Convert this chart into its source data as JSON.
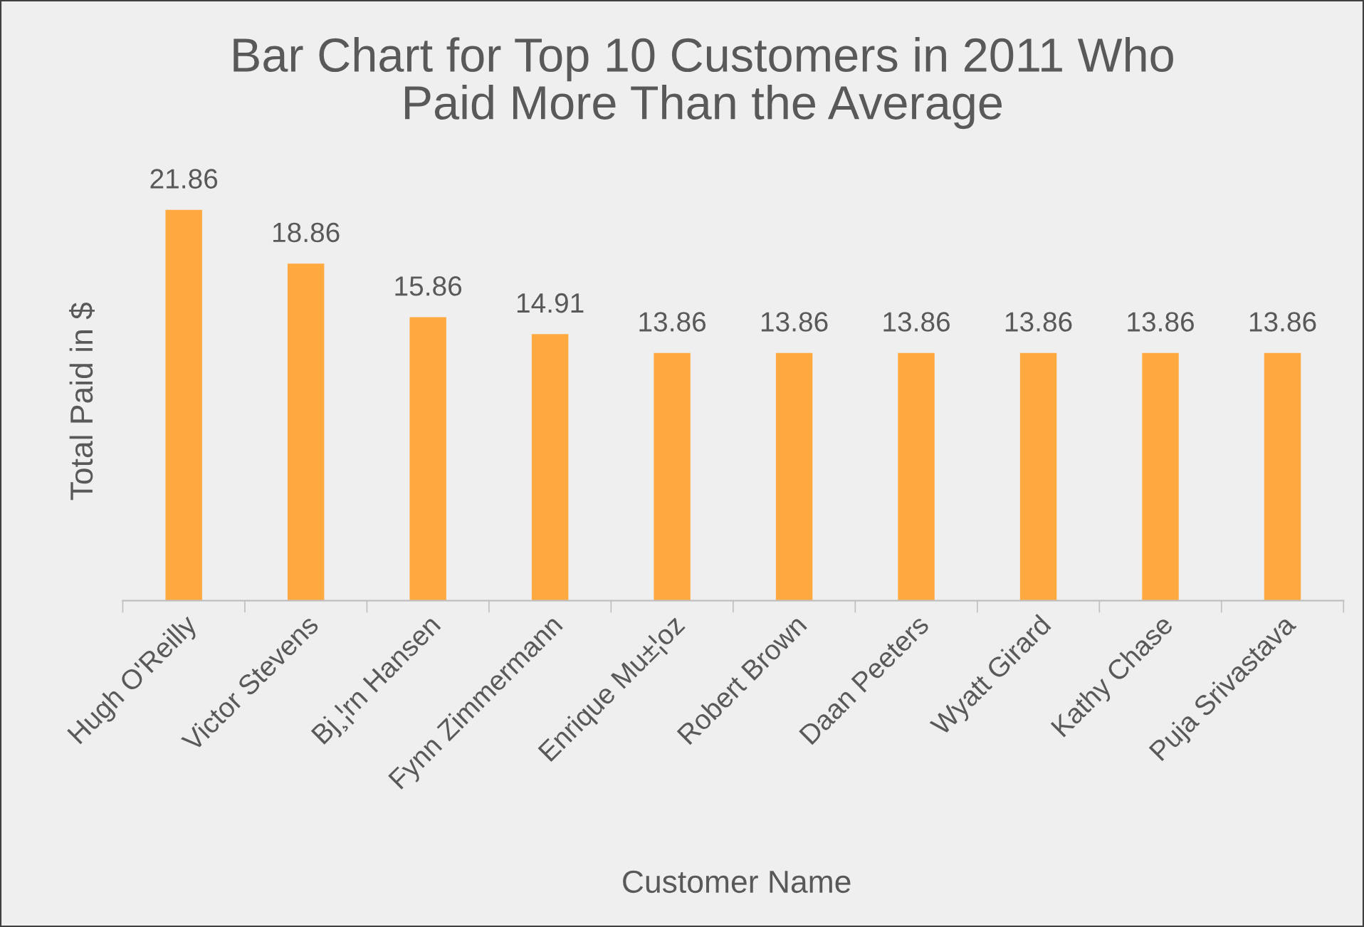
{
  "chart_data": {
    "type": "bar",
    "title": "Bar Chart for Top 10 Customers in 2011 Who\nPaid More Than the Average",
    "xlabel": "Customer Name",
    "ylabel": "Total Paid in $",
    "categories": [
      "Hugh O'Reilly",
      "Victor Stevens",
      "Bj¸¦rn Hansen",
      "Fynn Zimmermann",
      "Enrique Mu±¦oz",
      "Robert Brown",
      "Daan Peeters",
      "Wyatt Girard",
      "Kathy Chase",
      "Puja Srivastava"
    ],
    "values": [
      21.86,
      18.86,
      15.86,
      14.91,
      13.86,
      13.86,
      13.86,
      13.86,
      13.86,
      13.86
    ],
    "color": "#ffa940",
    "data_labels": true,
    "grid": false,
    "legend": false
  }
}
